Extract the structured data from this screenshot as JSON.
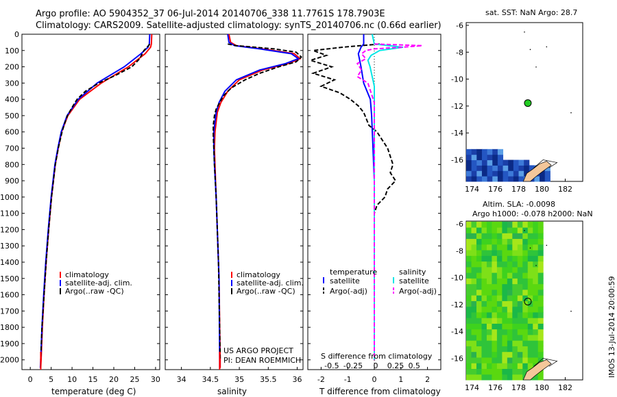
{
  "header": {
    "line1": "Argo profile: AO 5904352_37 06-Jul-2014 20140706_338 11.7761S 178.7903E",
    "line2": "Climatology: CARS2009. Satellite-adjusted climatology: synTS_20140706.nc (0.66d earlier)"
  },
  "colors": {
    "climatology": "#ff0000",
    "satellite": "#0000ff",
    "argo": "#000000",
    "sal_satellite": "#00e5e5",
    "sal_argo": "#ff00ff",
    "land": "#f4c79a",
    "sla_green": "#1ec81e",
    "point": "#22cc22"
  },
  "chart_data": [
    {
      "type": "line",
      "title": "temperature",
      "xlabel": "temperature (deg C)",
      "ylabel": "",
      "xlim": [
        -2,
        31
      ],
      "ylim": [
        2060,
        0
      ],
      "xticks": [
        0,
        5,
        10,
        15,
        20,
        25,
        30
      ],
      "yticks": [
        0,
        100,
        200,
        300,
        400,
        500,
        600,
        700,
        800,
        900,
        1000,
        1100,
        1200,
        1300,
        1400,
        1500,
        1600,
        1700,
        1800,
        1900,
        2000
      ],
      "legend": [
        "climatology",
        "satellite-adj. clim.",
        "Argo(..raw -QC)"
      ],
      "series": [
        {
          "name": "climatology",
          "depth": [
            0,
            60,
            80,
            120,
            200,
            300,
            400,
            500,
            600,
            700,
            800,
            1000,
            1200,
            1400,
            1600,
            1800,
            2000,
            2050
          ],
          "values": [
            29.1,
            29.0,
            28.8,
            27.5,
            23.5,
            17.0,
            11.8,
            9.0,
            7.5,
            6.7,
            6.0,
            5.1,
            4.4,
            3.8,
            3.3,
            2.9,
            2.6,
            2.5
          ]
        },
        {
          "name": "satellite-adj. clim.",
          "depth": [
            0,
            60,
            80,
            120,
            200,
            300,
            400,
            500,
            600,
            700,
            800,
            1000,
            1200,
            1400,
            1600,
            1800,
            2000,
            2050
          ],
          "values": [
            28.6,
            28.5,
            28.2,
            26.5,
            22.5,
            16.0,
            11.5,
            8.8,
            7.4,
            6.6,
            5.9,
            5.0,
            4.3,
            3.7,
            3.2,
            2.8,
            2.5,
            2.4
          ]
        },
        {
          "name": "Argo(..raw -QC)",
          "depth": [
            60,
            70,
            100,
            150,
            200,
            250,
            300,
            350,
            400,
            450,
            500,
            550,
            600,
            700,
            800,
            1000,
            1200,
            1400,
            1600,
            1800,
            2000
          ],
          "values": [
            28.6,
            28.3,
            27.2,
            26.2,
            24.3,
            20.6,
            16.4,
            13.2,
            11.2,
            10.0,
            8.9,
            8.2,
            7.6,
            6.7,
            6.0,
            5.1,
            4.4,
            3.8,
            3.3,
            2.8,
            2.5
          ]
        }
      ]
    },
    {
      "type": "line",
      "title": "salinity",
      "xlabel": "salinity",
      "xlim": [
        33.72,
        36.1
      ],
      "ylim": [
        2060,
        0
      ],
      "xticks": [
        34,
        34.5,
        35,
        35.5,
        36
      ],
      "legend": [
        "climatology",
        "satellite-adj. clim.",
        "Argo(..raw -QC)"
      ],
      "series": [
        {
          "name": "climatology",
          "depth": [
            0,
            50,
            70,
            90,
            120,
            150,
            180,
            220,
            280,
            350,
            420,
            480,
            540,
            600,
            700,
            800,
            1000,
            1500,
            2000,
            2050
          ],
          "values": [
            34.82,
            34.85,
            34.95,
            35.4,
            35.95,
            36.05,
            35.85,
            35.4,
            35.0,
            34.8,
            34.68,
            34.62,
            34.6,
            34.58,
            34.57,
            34.58,
            34.6,
            34.65,
            34.67,
            34.67
          ]
        },
        {
          "name": "satellite-adj. clim.",
          "depth": [
            0,
            50,
            70,
            90,
            120,
            150,
            180,
            220,
            280,
            350,
            420,
            480,
            540,
            600,
            700,
            800,
            1000,
            1500,
            2000,
            2050
          ],
          "values": [
            34.8,
            34.82,
            34.92,
            35.35,
            35.9,
            36.02,
            35.8,
            35.35,
            34.95,
            34.75,
            34.65,
            34.6,
            34.58,
            34.56,
            34.56,
            34.57,
            34.6,
            34.65,
            34.66,
            34.66
          ]
        },
        {
          "name": "Argo(..raw -QC)",
          "depth": [
            60,
            70,
            90,
            110,
            140,
            170,
            200,
            240,
            280,
            330,
            380,
            420,
            460,
            500,
            560,
            620,
            700,
            800,
            1000,
            1200,
            1400,
            1600,
            1800,
            2000
          ],
          "values": [
            34.8,
            34.95,
            35.6,
            35.98,
            36.07,
            35.98,
            35.68,
            35.35,
            35.1,
            34.86,
            34.72,
            34.66,
            34.6,
            34.57,
            34.55,
            34.55,
            34.56,
            34.57,
            34.6,
            34.62,
            34.64,
            34.65,
            34.66,
            34.67
          ]
        }
      ]
    },
    {
      "type": "line",
      "title": "difference from climatology",
      "xlabel_bottom": "T difference from climatology",
      "xlabel_top": "S difference from climatology",
      "xlim": [
        -2.5,
        2.5
      ],
      "ylim": [
        2060,
        0
      ],
      "xticks_bottom": [
        -2,
        -1,
        0,
        1,
        2
      ],
      "xticks_top_labels": [
        "-0.5",
        "-0.25",
        "0",
        "0.25",
        "0.5"
      ],
      "legend_temperature": [
        "temperature",
        "satellite",
        "Argo(-adj)"
      ],
      "legend_salinity": [
        "salinity",
        "satellite",
        "Argo(-adj)"
      ],
      "series": [
        {
          "name": "T satellite",
          "depth": [
            0,
            60,
            80,
            120,
            200,
            300,
            400,
            500,
            700,
            900,
            1100,
            1500,
            2000
          ],
          "values": [
            -0.4,
            -0.4,
            -0.5,
            -0.6,
            -0.5,
            -0.4,
            -0.15,
            -0.1,
            -0.05,
            0.0,
            0.0,
            0.0,
            0.0
          ]
        },
        {
          "name": "T Argo(-adj)",
          "depth": [
            60,
            80,
            100,
            130,
            160,
            200,
            240,
            280,
            320,
            360,
            400,
            440,
            480,
            520,
            560,
            600,
            650,
            700,
            750,
            800,
            850,
            900,
            950,
            1000,
            1050,
            1100,
            1200,
            1400,
            1600,
            2000
          ],
          "values": [
            0.2,
            -1.2,
            -2.3,
            -1.8,
            -2.4,
            -1.6,
            -2.3,
            -1.5,
            -2.0,
            -1.3,
            -0.9,
            -0.6,
            -0.4,
            -0.3,
            -0.2,
            0.1,
            0.3,
            0.5,
            0.6,
            0.7,
            0.6,
            0.8,
            0.5,
            0.4,
            0.1,
            0.0,
            0.0,
            0.0,
            0.0,
            0.0
          ]
        },
        {
          "name": "S satellite",
          "depth": [
            0,
            60,
            80,
            100,
            130,
            160,
            200,
            260,
            320,
            400,
            500,
            700,
            1000,
            2000
          ],
          "values": [
            -0.02,
            0.0,
            0.27,
            0.05,
            -0.03,
            -0.06,
            -0.04,
            -0.02,
            0.0,
            0.0,
            0.0,
            0.0,
            0.0,
            0.0
          ]
        },
        {
          "name": "S Argo(-adj)",
          "depth": [
            60,
            70,
            80,
            90,
            100,
            120,
            150,
            180,
            220,
            260,
            300,
            360,
            420,
            500,
            600,
            800,
            1000,
            2000
          ],
          "values": [
            0.0,
            0.45,
            0.26,
            0.0,
            -0.08,
            -0.12,
            -0.08,
            -0.16,
            -0.12,
            -0.16,
            -0.06,
            -0.03,
            0.0,
            0.0,
            0.0,
            0.0,
            0.0,
            0.0
          ]
        }
      ]
    },
    {
      "type": "heatmap",
      "title": "sat. SST: NaN Argo: 28.7",
      "xlim": [
        173.5,
        183.5
      ],
      "ylim": [
        -17.6,
        -5.8
      ],
      "xticks": [
        174,
        176,
        178,
        180,
        182
      ],
      "yticks": [
        -6,
        -8,
        -10,
        -12,
        -14,
        -16
      ],
      "argo_point": [
        178.79,
        -11.78
      ]
    },
    {
      "type": "heatmap",
      "title_line1": "Altim. SLA: -0.0098",
      "title_line2": "Argo h1000: -0.078 h2000: NaN",
      "xlim": [
        173.5,
        183.5
      ],
      "ylim": [
        -17.6,
        -5.8
      ],
      "xticks": [
        174,
        176,
        178,
        180,
        182
      ],
      "yticks": [
        -6,
        -8,
        -10,
        -12,
        -14,
        -16
      ],
      "argo_point": [
        178.79,
        -11.78
      ]
    }
  ],
  "annotations": {
    "project": "US ARGO PROJECT",
    "pi": "PI: DEAN ROEMMICH",
    "side_label": "IMOS 13-Jul-2014 20:00:59"
  }
}
